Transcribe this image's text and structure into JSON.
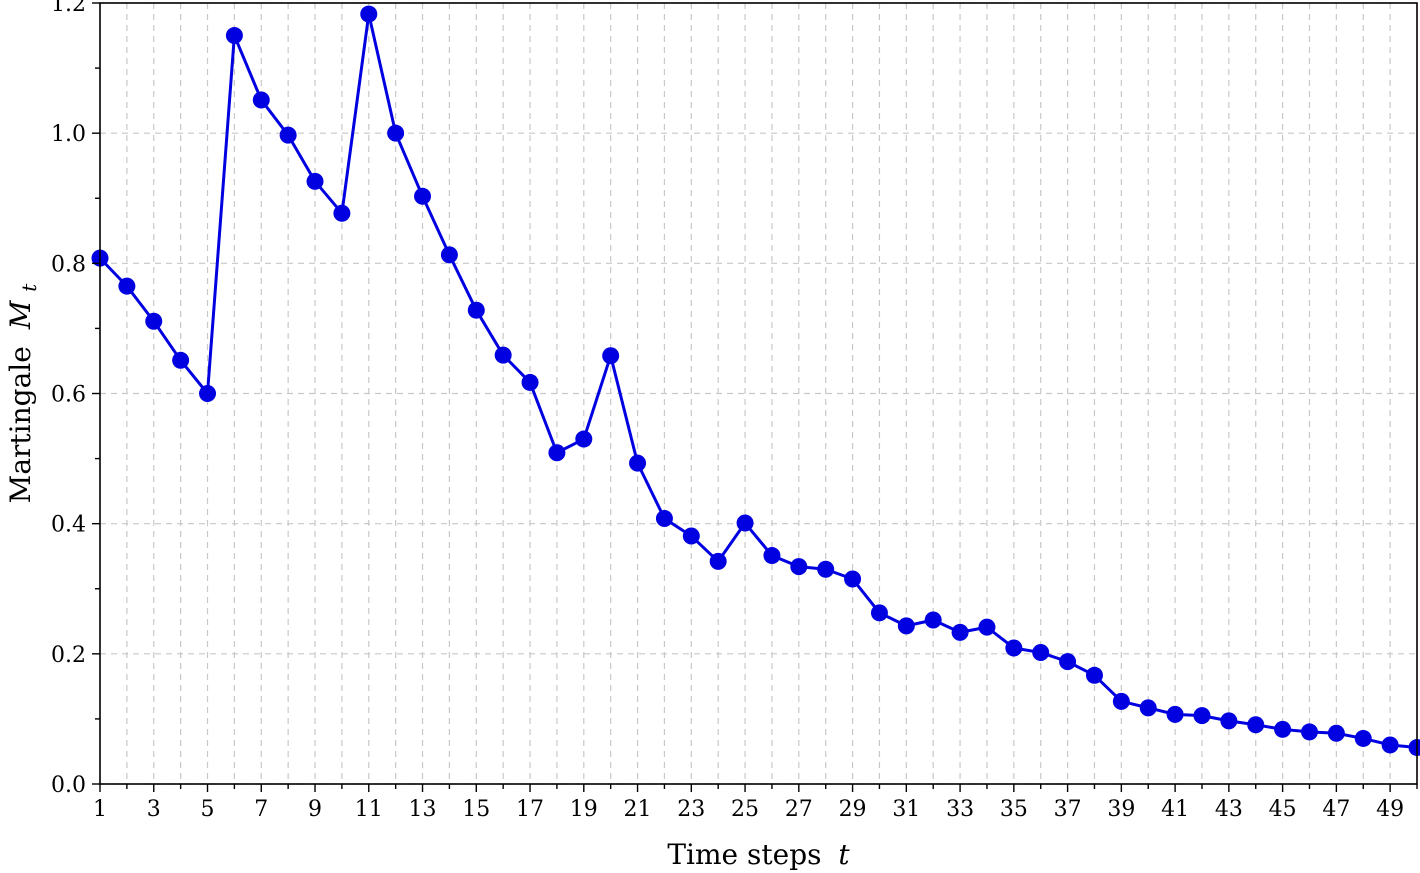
{
  "chart_data": {
    "type": "line",
    "xlabel": "Time steps",
    "xlabel_var": "t",
    "ylabel": "Martingale",
    "ylabel_var": "M",
    "ylabel_sub": "t",
    "xlim": [
      1,
      50
    ],
    "ylim": [
      0.0,
      1.2
    ],
    "grid": true,
    "x_ticks": [
      1,
      3,
      5,
      7,
      9,
      11,
      13,
      15,
      17,
      19,
      21,
      23,
      25,
      27,
      29,
      31,
      33,
      35,
      37,
      39,
      41,
      43,
      45,
      47,
      49
    ],
    "y_ticks": [
      "0.0",
      "0.2",
      "0.4",
      "0.6",
      "0.8",
      "1.0",
      "1.2"
    ],
    "series": [
      {
        "color": "#0000e0",
        "marker": "circle",
        "x": [
          1,
          2,
          3,
          4,
          5,
          6,
          7,
          8,
          9,
          10,
          11,
          12,
          13,
          14,
          15,
          16,
          17,
          18,
          19,
          20,
          21,
          22,
          23,
          24,
          25,
          26,
          27,
          28,
          29,
          30,
          31,
          32,
          33,
          34,
          35,
          36,
          37,
          38,
          39,
          40,
          41,
          42,
          43,
          44,
          45,
          46,
          47,
          48,
          49,
          50
        ],
        "values": [
          0.808,
          0.765,
          0.711,
          0.651,
          0.6,
          1.15,
          1.051,
          0.997,
          0.926,
          0.877,
          1.183,
          1.0,
          0.903,
          0.813,
          0.728,
          0.659,
          0.617,
          0.509,
          0.53,
          0.658,
          0.493,
          0.408,
          0.381,
          0.342,
          0.401,
          0.351,
          0.334,
          0.33,
          0.315,
          0.263,
          0.243,
          0.252,
          0.233,
          0.241,
          0.209,
          0.202,
          0.188,
          0.167,
          0.127,
          0.117,
          0.107,
          0.105,
          0.097,
          0.091,
          0.084,
          0.08,
          0.078,
          0.07,
          0.06,
          0.056
        ]
      }
    ]
  }
}
